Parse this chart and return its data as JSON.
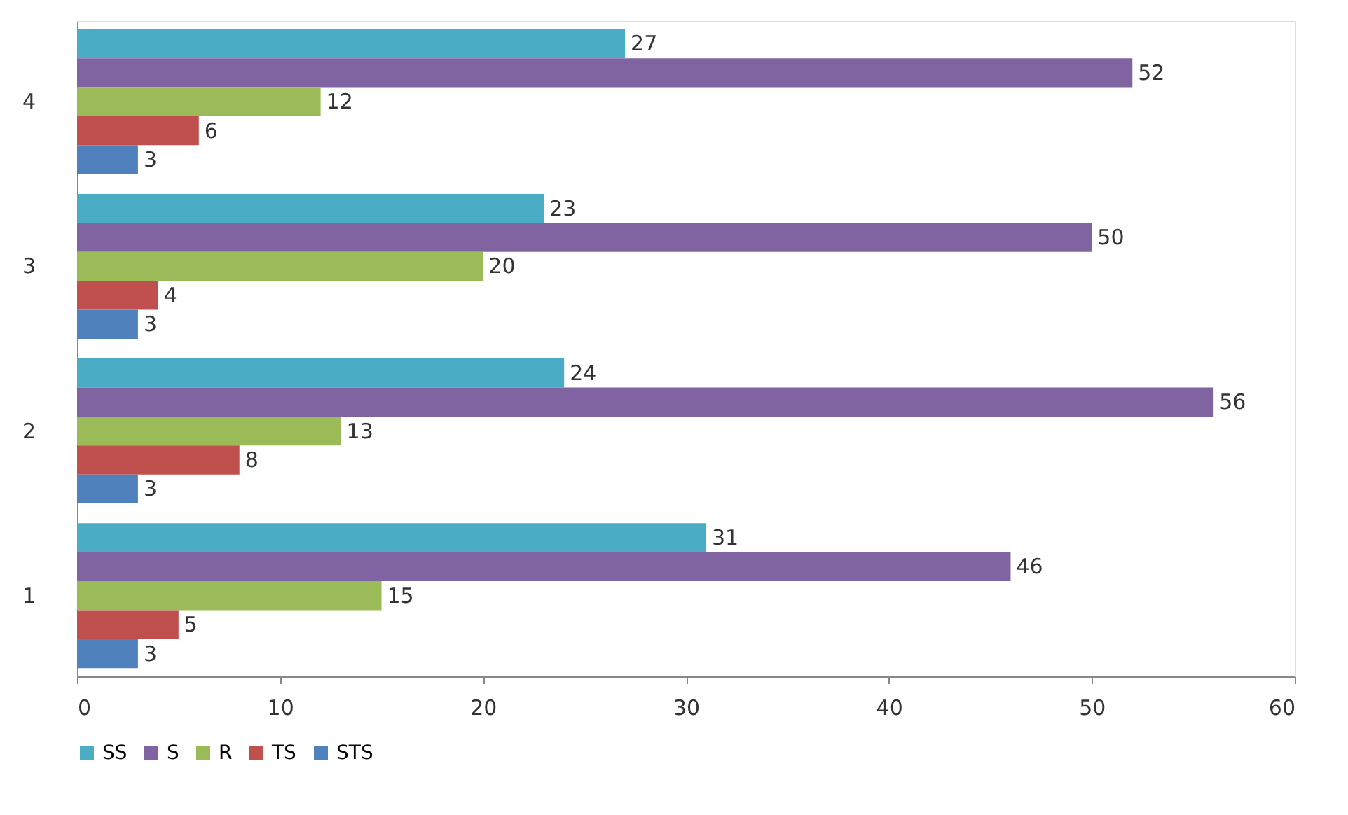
{
  "chart_data": {
    "type": "bar",
    "orientation": "horizontal",
    "categories": [
      "4",
      "3",
      "2",
      "1"
    ],
    "series": [
      {
        "name": "SS",
        "color": "#4bacc6",
        "values": [
          27,
          23,
          24,
          31
        ]
      },
      {
        "name": "S",
        "color": "#8064a2",
        "values": [
          52,
          50,
          56,
          46
        ]
      },
      {
        "name": "R",
        "color": "#9bbb59",
        "values": [
          12,
          20,
          13,
          15
        ]
      },
      {
        "name": "TS",
        "color": "#c0504d",
        "values": [
          6,
          4,
          8,
          5
        ]
      },
      {
        "name": "STS",
        "color": "#4f81bd",
        "values": [
          3,
          3,
          3,
          3
        ]
      }
    ],
    "xlim": [
      0,
      60
    ],
    "xticks": [
      0,
      10,
      20,
      30,
      40,
      50,
      60
    ],
    "grid": false,
    "legend": "bottom",
    "data_labels": true
  }
}
